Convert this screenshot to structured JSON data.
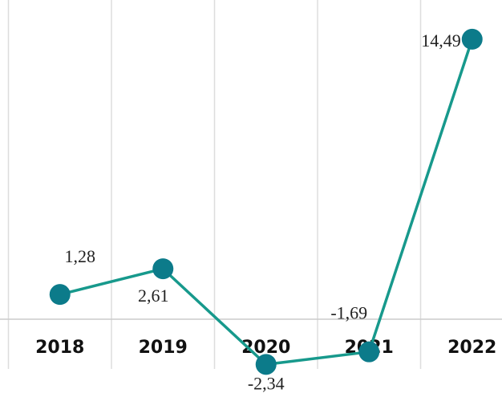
{
  "chart_data": {
    "type": "line",
    "categories": [
      "2018",
      "2019",
      "2020",
      "2021",
      "2022"
    ],
    "values": [
      1.28,
      2.61,
      -2.34,
      -1.69,
      14.49
    ],
    "value_labels": [
      "1,28",
      "2,61",
      "-2,34",
      "-1,69",
      "14,49"
    ],
    "ylim": [
      -3.82,
      16.52
    ],
    "line_color": "#17998c",
    "marker_color": "#0c7b8a"
  }
}
